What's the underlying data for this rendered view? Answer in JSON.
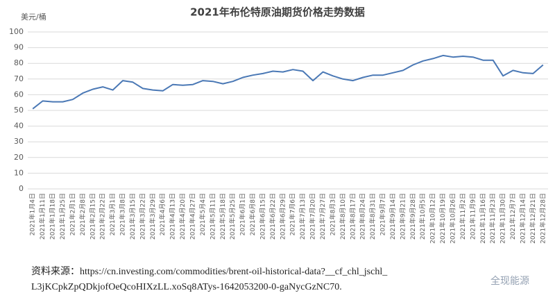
{
  "chart_data": {
    "type": "line",
    "title": "2021年布伦特原油期货价格走势数据",
    "y_label": "美元/桶",
    "categories": [
      "2021年1月4日",
      "2021年1月11日",
      "2021年1月18日",
      "2021年1月25日",
      "2021年2月1日",
      "2021年2月8日",
      "2021年2月15日",
      "2021年2月22日",
      "2021年3月1日",
      "2021年3月8日",
      "2021年3月15日",
      "2021年3月22日",
      "2021年3月29日",
      "2021年4月6日",
      "2021年4月13日",
      "2021年4月20日",
      "2021年4月27日",
      "2021年5月4日",
      "2021年5月11日",
      "2021年5月18日",
      "2021年5月25日",
      "2021年6月1日",
      "2021年6月8日",
      "2021年6月15日",
      "2021年6月22日",
      "2021年6月29日",
      "2021年7月6日",
      "2021年7月13日",
      "2021年7月20日",
      "2021年7月27日",
      "2021年8月3日",
      "2021年8月10日",
      "2021年8月17日",
      "2021年8月24日",
      "2021年8月31日",
      "2021年9月7日",
      "2021年9月14日",
      "2021年9月21日",
      "2021年9月28日",
      "2021年10月5日",
      "2021年10月12日",
      "2021年10月19日",
      "2021年10月26日",
      "2021年11月2日",
      "2021年11月9日",
      "2021年11月16日",
      "2021年11月23日",
      "2021年11月30日",
      "2021年12月7日",
      "2021年12月14日",
      "2021年12月21日",
      "2021年12月28日"
    ],
    "values": [
      51,
      56,
      55.5,
      55.5,
      57,
      61,
      63.5,
      65,
      63,
      69,
      68,
      64,
      63,
      62.5,
      66.5,
      66,
      66.5,
      69,
      68.5,
      67,
      68.5,
      71,
      72.5,
      73.5,
      75,
      74.5,
      76,
      75,
      69,
      74.5,
      72,
      70,
      69,
      71,
      72.5,
      72.5,
      74,
      75.5,
      79,
      81.5,
      83,
      85,
      84,
      84.5,
      84,
      82,
      82,
      72,
      75.5,
      74,
      73.5,
      79
    ],
    "color": "#4a78b5",
    "ylim": [
      0,
      100
    ],
    "yticks": [
      0,
      10,
      20,
      30,
      40,
      50,
      60,
      70,
      80,
      90,
      100
    ],
    "grid": true
  },
  "source": [
    "资料来源：https://cn.investing.com/commodities/brent-oil-historical-data?__cf_chl_jschl_",
    "L3jKCpkZpQDkjofOeQcoHIXzLL.xoSq8ATys-1642053200-0-gaNycGzNC70."
  ],
  "watermark": "全现能源"
}
